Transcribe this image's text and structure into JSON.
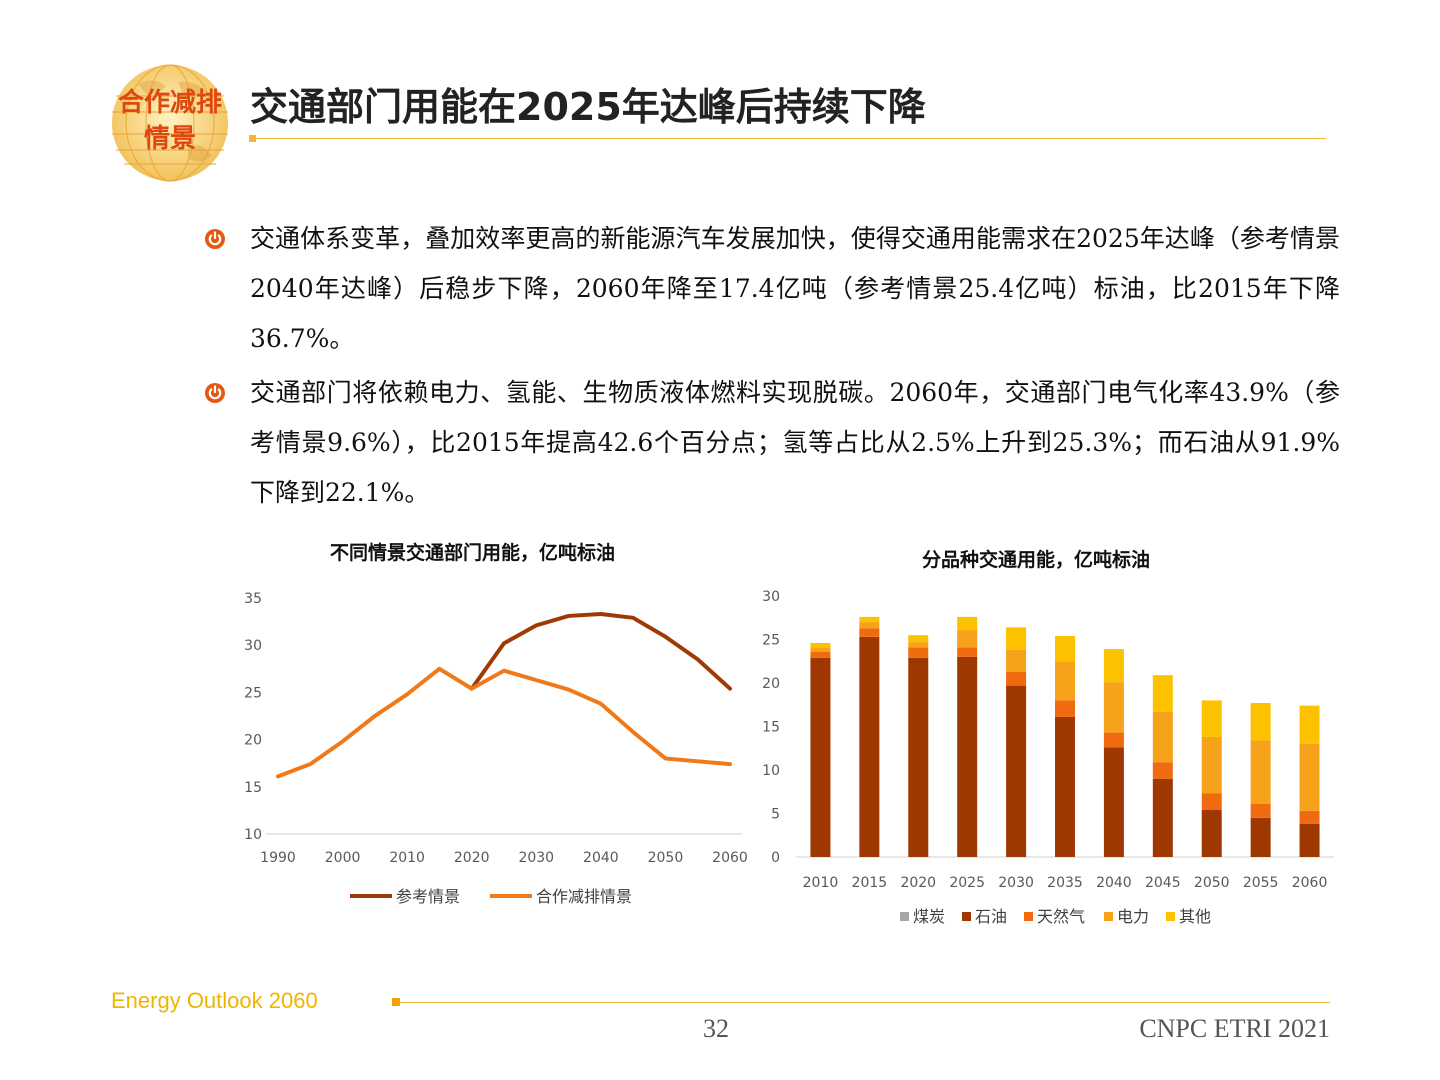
{
  "header": {
    "logo_line1": "合作减排",
    "logo_line2": "情景",
    "title": "交通部门用能在2025年达峰后持续下降"
  },
  "bullets": [
    {
      "text": "交通体系变革，叠加效率更高的新能源汽车发展加快，使得交通用能需求在2025年达峰（参考情景2040年达峰）后稳步下降，2060年降至17.4亿吨（参考情景25.4亿吨）标油，比2015年下降36.7%。"
    },
    {
      "text": "交通部门将依赖电力、氢能、生物质液体燃料实现脱碳。2060年，交通部门电气化率43.9%（参考情景9.6%），比2015年提高42.6个百分点；氢等占比从2.5%上升到25.3%；而石油从91.9%下降到22.1%。"
    }
  ],
  "chart_data": [
    {
      "type": "line",
      "title": "不同情景交通部门用能，亿吨标油",
      "x": [
        1990,
        1995,
        2000,
        2005,
        2010,
        2015,
        2020,
        2025,
        2030,
        2035,
        2040,
        2045,
        2050,
        2055,
        2060
      ],
      "x_ticks": [
        "1990",
        "2000",
        "2010",
        "2020",
        "2030",
        "2040",
        "2050",
        "2060"
      ],
      "y_ticks": [
        "10",
        "15",
        "20",
        "25",
        "30",
        "35"
      ],
      "ylim": [
        10,
        35
      ],
      "grid": false,
      "legend_position": "bottom",
      "series": [
        {
          "name": "参考情景",
          "color": "#9e3a06",
          "x": [
            2020,
            2025,
            2030,
            2035,
            2040,
            2045,
            2050,
            2055,
            2060
          ],
          "values": [
            25.4,
            30.2,
            32.1,
            33.1,
            33.3,
            32.9,
            30.9,
            28.5,
            25.4
          ]
        },
        {
          "name": "合作减排情景",
          "color": "#f07a1a",
          "x": [
            1990,
            1995,
            2000,
            2005,
            2010,
            2015,
            2020,
            2025,
            2030,
            2035,
            2040,
            2045,
            2050,
            2055,
            2060
          ],
          "values": [
            16.1,
            17.4,
            19.8,
            22.5,
            24.8,
            27.5,
            25.4,
            27.3,
            26.3,
            25.3,
            23.8,
            20.8,
            18.0,
            17.7,
            17.4
          ]
        }
      ]
    },
    {
      "type": "bar",
      "stacked": true,
      "title": "分品种交通用能，亿吨标油",
      "categories": [
        "2010",
        "2015",
        "2020",
        "2025",
        "2030",
        "2035",
        "2040",
        "2045",
        "2050",
        "2055",
        "2060"
      ],
      "y_ticks": [
        "0",
        "5",
        "10",
        "15",
        "20",
        "25",
        "30"
      ],
      "ylim": [
        0,
        30
      ],
      "grid": false,
      "legend_position": "bottom",
      "series": [
        {
          "name": "煤炭",
          "color": "#a6a6a6",
          "values": [
            0,
            0,
            0,
            0,
            0,
            0,
            0,
            0,
            0,
            0,
            0
          ]
        },
        {
          "name": "石油",
          "color": "#9e3700",
          "values": [
            22.9,
            25.3,
            22.9,
            23.0,
            19.7,
            16.1,
            12.6,
            9.0,
            5.4,
            4.5,
            3.8
          ]
        },
        {
          "name": "天然气",
          "color": "#f06a10",
          "values": [
            0.7,
            1.0,
            1.2,
            1.1,
            1.6,
            1.9,
            1.7,
            1.9,
            1.9,
            1.6,
            1.5
          ]
        },
        {
          "name": "电力",
          "color": "#f7a21b",
          "values": [
            0.5,
            0.7,
            0.6,
            2.0,
            2.5,
            4.5,
            5.8,
            5.8,
            6.5,
            7.3,
            7.7
          ]
        },
        {
          "name": "其他",
          "color": "#fcc200",
          "values": [
            0.5,
            0.6,
            0.8,
            1.5,
            2.6,
            2.9,
            3.8,
            4.2,
            4.2,
            4.3,
            4.4
          ]
        }
      ]
    }
  ],
  "footer": {
    "left": "Energy Outlook 2060",
    "page": "32",
    "right": "CNPC ETRI 2021"
  }
}
